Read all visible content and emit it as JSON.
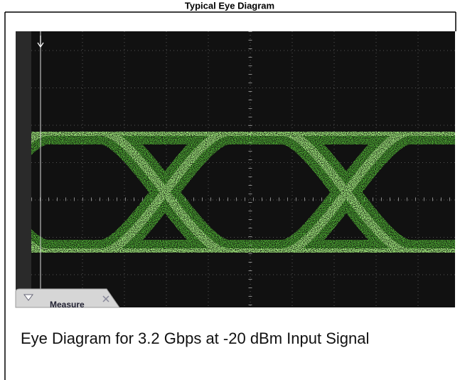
{
  "title": "Typical Eye Diagram",
  "screen": {
    "tab_label": "Measure"
  },
  "caption": "Eye Diagram for 3.2 Gbps at -20 dBm Input Signal"
}
